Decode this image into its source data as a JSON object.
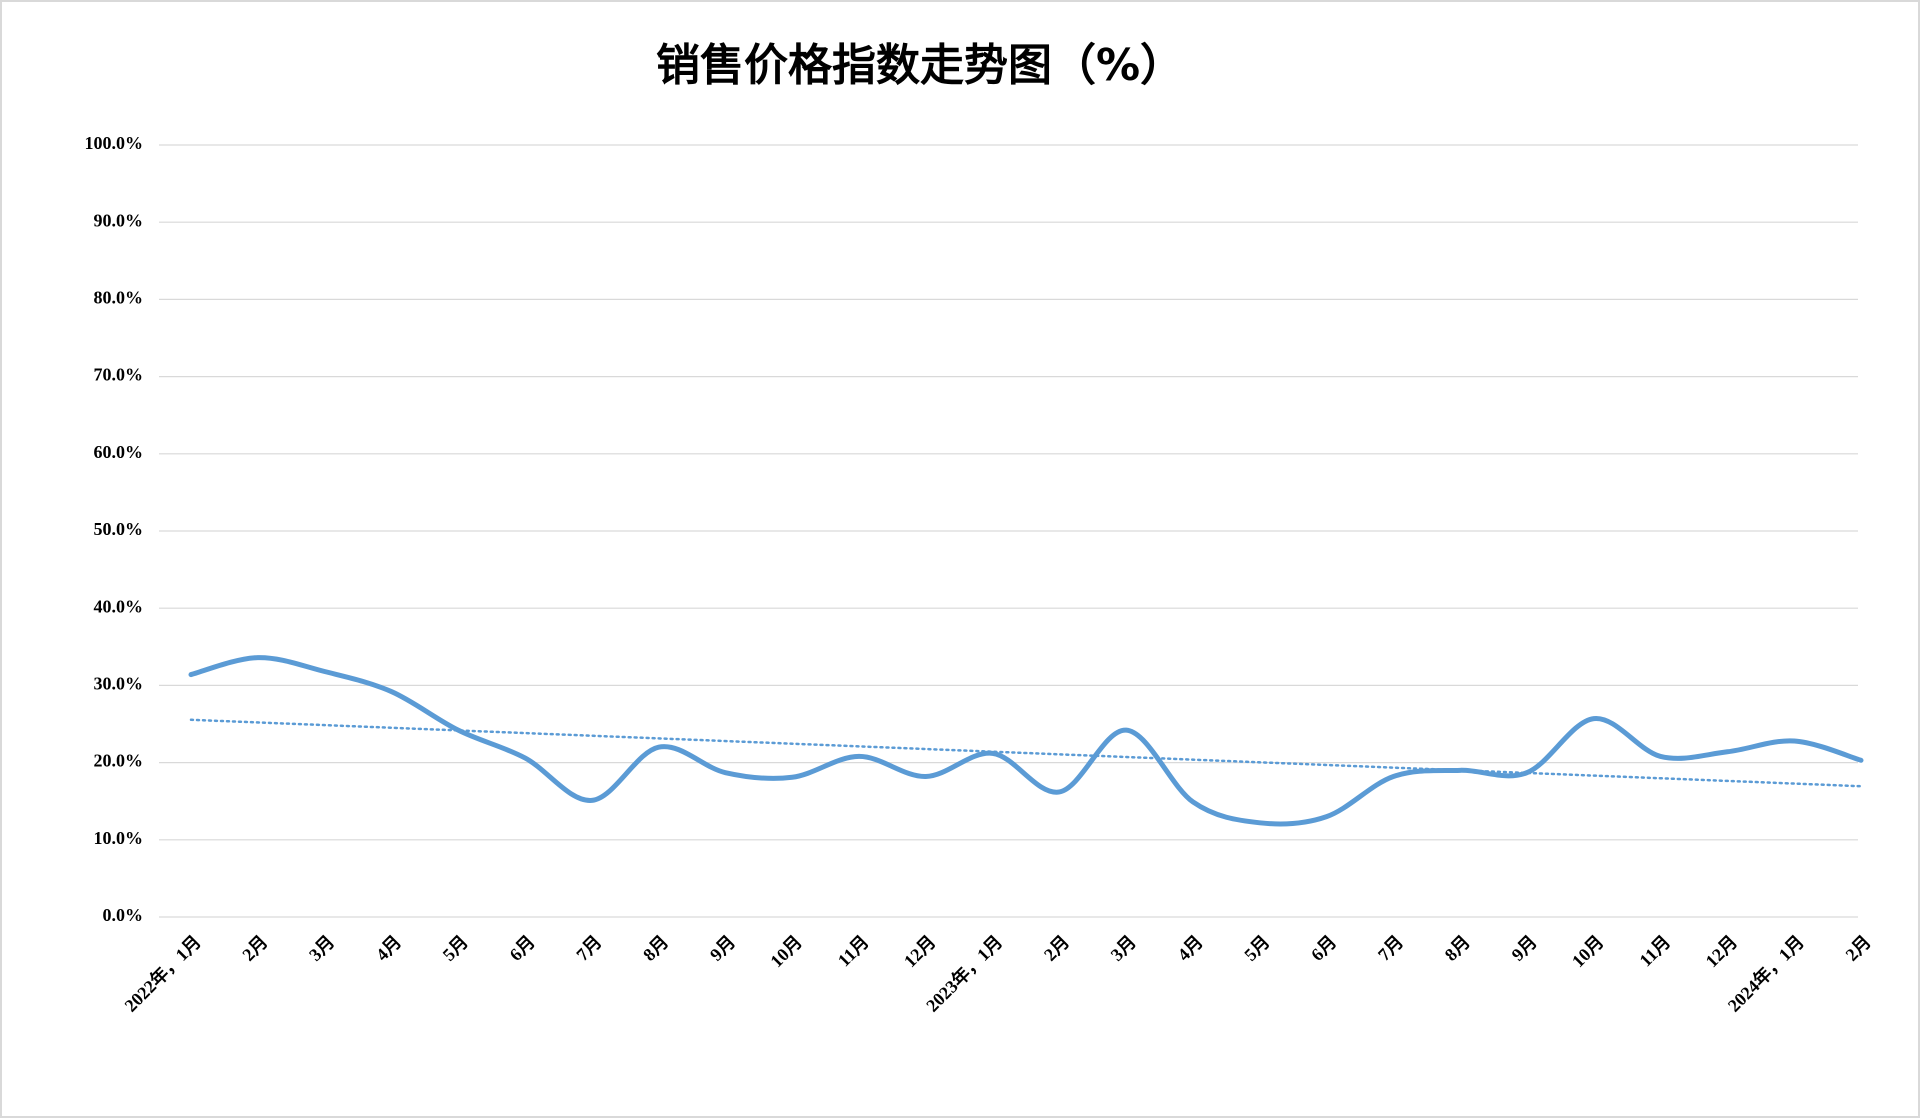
{
  "chart_data": {
    "type": "line",
    "title": "销售价格指数走势图（%）",
    "categories": [
      "2022年，1月",
      "2月",
      "3月",
      "4月",
      "5月",
      "6月",
      "7月",
      "8月",
      "9月",
      "10月",
      "11月",
      "12月",
      "2023年，1月",
      "2月",
      "3月",
      "4月",
      "5月",
      "6月",
      "7月",
      "8月",
      "9月",
      "10月",
      "11月",
      "12月",
      "2024年，1月",
      "2月"
    ],
    "values": [
      31.4,
      33.6,
      31.8,
      29.2,
      24.2,
      20.6,
      15.1,
      22.0,
      18.7,
      18.1,
      20.8,
      18.2,
      21.2,
      16.2,
      24.2,
      14.9,
      12.2,
      13.0,
      18.2,
      19.0,
      18.7,
      25.7,
      20.8,
      21.4,
      22.8,
      20.3
    ],
    "color": "#5b9bd5",
    "trendline": true,
    "ylim": [
      0,
      100
    ],
    "yticks": [
      {
        "value": 0,
        "label": "0.0%"
      },
      {
        "value": 10,
        "label": "10.0%"
      },
      {
        "value": 20,
        "label": "20.0%"
      },
      {
        "value": 30,
        "label": "30.0%"
      },
      {
        "value": 40,
        "label": "40.0%"
      },
      {
        "value": 50,
        "label": "50.0%"
      },
      {
        "value": 60,
        "label": "60.0%"
      },
      {
        "value": 70,
        "label": "70.0%"
      },
      {
        "value": 80,
        "label": "80.0%"
      },
      {
        "value": 90,
        "label": "90.0%"
      },
      {
        "value": 100,
        "label": "100.0%"
      }
    ],
    "grid": true
  }
}
